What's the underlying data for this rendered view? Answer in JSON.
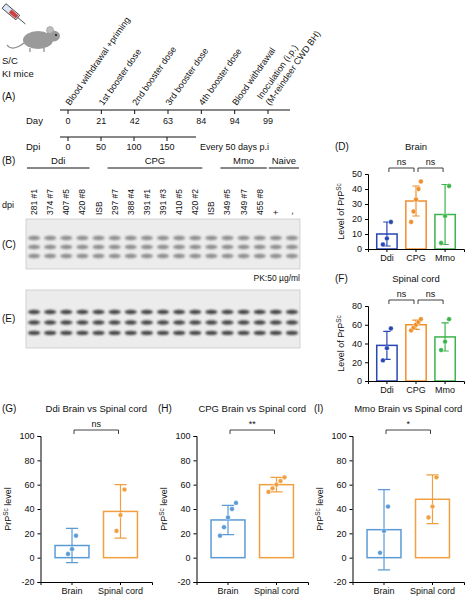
{
  "timeline": {
    "panel_label": "(A)",
    "icon_labels": [
      "S/C",
      "KI mice"
    ],
    "day_label": "Day",
    "events": [
      {
        "day": 0,
        "lines": [
          "Blood withdrawal +priming"
        ]
      },
      {
        "day": 21,
        "lines": [
          "1st booster dose"
        ]
      },
      {
        "day": 42,
        "lines": [
          "2nd booster dose"
        ]
      },
      {
        "day": 63,
        "lines": [
          "3rd booster dose"
        ]
      },
      {
        "day": 84,
        "lines": [
          "4th booster dose"
        ]
      },
      {
        "day": 94,
        "lines": [
          "Blood withdrawal"
        ]
      },
      {
        "day": 99,
        "lines": [
          "Inoculation (i.p.)",
          "(M-reindeer CWD BH)"
        ]
      }
    ],
    "dpi_label": "Dpi",
    "dpi_ticks": [
      0,
      50,
      100,
      150
    ],
    "dpi_after": "Every 50 days p.i"
  },
  "blot": {
    "panel_label": "(B)",
    "dpi_label": "dpi",
    "groups": [
      {
        "name": "Ddi",
        "lanes": [
          "281 #1",
          "374 #7",
          "407 #5",
          "420 #8"
        ]
      },
      {
        "lanes": [
          "ISB"
        ]
      },
      {
        "name": "CPG",
        "lanes": [
          "297 #7",
          "388 #4",
          "391 #1",
          "391 #3",
          "410 #5",
          "420 #2"
        ]
      },
      {
        "lanes": [
          "ISB"
        ]
      },
      {
        "name": "Mmo",
        "lanes": [
          "349 #5",
          "349 #7",
          "455 #8"
        ]
      },
      {
        "name": "Naive",
        "lanes": [
          "+",
          "-"
        ]
      }
    ],
    "images": [
      {
        "panel_label": "(C)",
        "note": "PK:50 µg/ml"
      },
      {
        "panel_label": "(E)"
      }
    ]
  },
  "chart_data": [
    {
      "type": "bar",
      "panel_label": "(D)",
      "title": "Brain",
      "ylabel": {
        "before": "Level of PrP",
        "superscript": "Sc"
      },
      "categories": [
        "Ddi",
        "CPG",
        "Mmo"
      ],
      "values": [
        10,
        32,
        23
      ],
      "errors": [
        8,
        10,
        20
      ],
      "points": [
        [
          3,
          7,
          18
        ],
        [
          18,
          25,
          33,
          40,
          45
        ],
        [
          4,
          22,
          42
        ]
      ],
      "colors": [
        "#2846b4",
        "#ef8f2b",
        "#3bb44a"
      ],
      "ylim": [
        0,
        50
      ],
      "yticks": [
        0,
        10,
        20,
        30,
        40,
        50
      ],
      "annotations": [
        {
          "from": "Ddi",
          "to": "CPG",
          "text": "ns"
        },
        {
          "from": "CPG",
          "to": "Mmo",
          "text": "ns"
        }
      ]
    },
    {
      "type": "bar",
      "panel_label": "(F)",
      "title": "Spinal cord",
      "ylabel": {
        "before": "Level of PrP",
        "superscript": "Sc"
      },
      "categories": [
        "Ddi",
        "CPG",
        "Mmo"
      ],
      "values": [
        38,
        60,
        47
      ],
      "errors": [
        15,
        5,
        15
      ],
      "points": [
        [
          22,
          35,
          56
        ],
        [
          54,
          57,
          60,
          63,
          66
        ],
        [
          33,
          42,
          66
        ]
      ],
      "colors": [
        "#2846b4",
        "#ef8f2b",
        "#3bb44a"
      ],
      "ylim": [
        0,
        80
      ],
      "yticks": [
        0,
        20,
        40,
        60,
        80
      ],
      "annotations": [
        {
          "from": "Ddi",
          "to": "CPG",
          "text": "ns"
        },
        {
          "from": "CPG",
          "to": "Mmo",
          "text": "ns"
        }
      ]
    },
    {
      "type": "bar",
      "panel_label": "(G)",
      "title": "Ddi Brain vs Spinal cord",
      "ylabel": {
        "before": "PrP",
        "superscript": "Sc",
        "after": " level"
      },
      "categories": [
        "Brain",
        "Spinal cord"
      ],
      "values": [
        10,
        38
      ],
      "errors": [
        14,
        22
      ],
      "points": [
        [
          3,
          7,
          18
        ],
        [
          22,
          35,
          56
        ]
      ],
      "colors": [
        "#5b9bd5",
        "#f0a040"
      ],
      "ylim": [
        -20,
        100
      ],
      "yticks": [
        -20,
        0,
        20,
        40,
        60,
        80,
        100
      ],
      "annotations": [
        {
          "from": "Brain",
          "to": "Spinal cord",
          "text": "ns"
        }
      ]
    },
    {
      "type": "bar",
      "panel_label": "(H)",
      "title": "CPG Brain vs Spinal cord",
      "ylabel": {
        "before": "PrP",
        "superscript": "Sc",
        "after": " level"
      },
      "categories": [
        "Brain",
        "Spinal cord"
      ],
      "values": [
        31,
        60
      ],
      "errors": [
        12,
        6
      ],
      "points": [
        [
          18,
          25,
          33,
          40,
          45
        ],
        [
          54,
          57,
          60,
          63,
          66
        ]
      ],
      "colors": [
        "#5b9bd5",
        "#f0a040"
      ],
      "ylim": [
        -20,
        100
      ],
      "yticks": [
        -20,
        0,
        20,
        40,
        60,
        80,
        100
      ],
      "annotations": [
        {
          "from": "Brain",
          "to": "Spinal cord",
          "text": "**"
        }
      ]
    },
    {
      "type": "bar",
      "panel_label": "(I)",
      "title": "Mmo Brain vs Spinal cord",
      "ylabel": {
        "before": "PrP",
        "superscript": "Sc",
        "after": " level"
      },
      "categories": [
        "Brain",
        "Spinal cord"
      ],
      "values": [
        23,
        48
      ],
      "errors": [
        33,
        20
      ],
      "points": [
        [
          4,
          22,
          42
        ],
        [
          33,
          42,
          66
        ]
      ],
      "colors": [
        "#5b9bd5",
        "#f0a040"
      ],
      "ylim": [
        -20,
        100
      ],
      "yticks": [
        -20,
        0,
        20,
        40,
        60,
        80,
        100
      ],
      "annotations": [
        {
          "from": "Brain",
          "to": "Spinal cord",
          "text": "*"
        }
      ]
    }
  ]
}
